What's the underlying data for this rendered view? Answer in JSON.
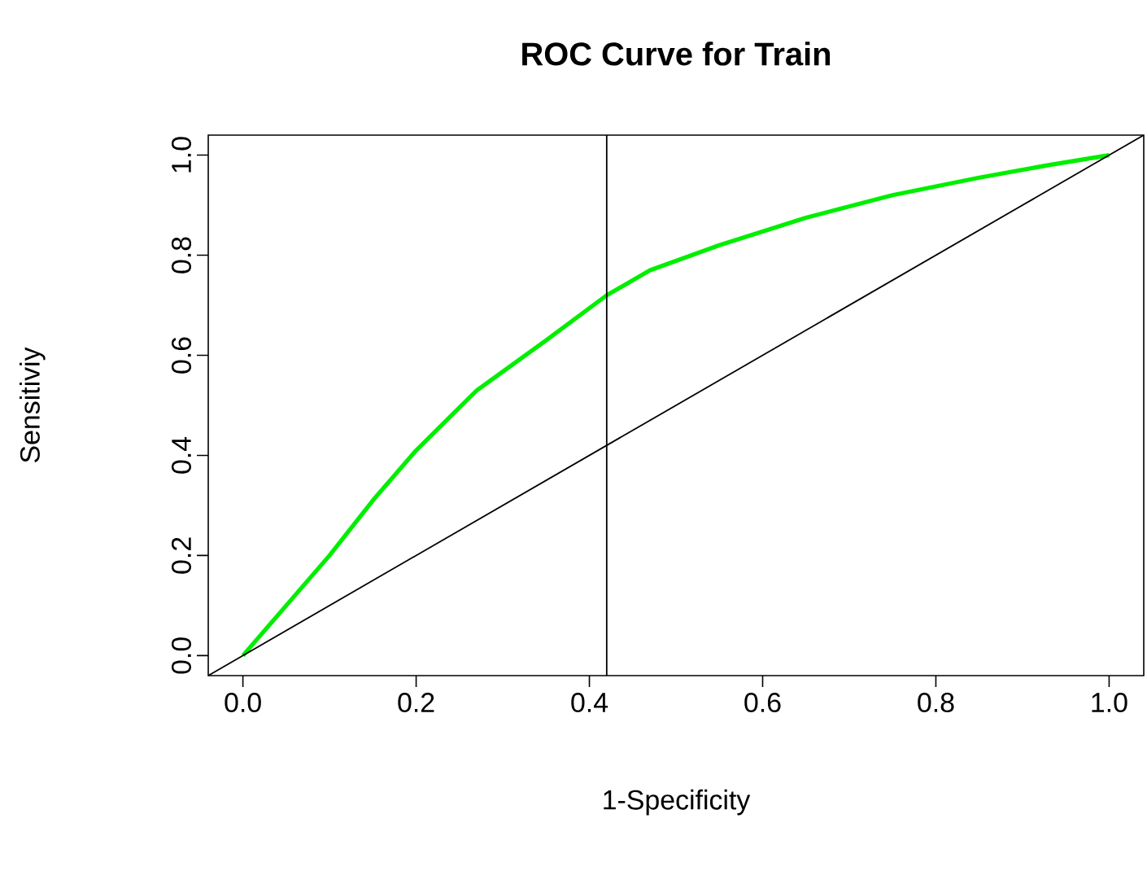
{
  "chart_data": {
    "type": "line",
    "title": "ROC Curve for Train",
    "xlabel": "1-Specificity",
    "ylabel": "Sensitiviy",
    "xlim": [
      -0.04,
      1.04
    ],
    "ylim": [
      -0.04,
      1.04
    ],
    "xticks": [
      {
        "value": 0,
        "label": "0.0"
      },
      {
        "value": 0.2,
        "label": "0.2"
      },
      {
        "value": 0.4,
        "label": "0.4"
      },
      {
        "value": 0.6,
        "label": "0.6"
      },
      {
        "value": 0.8,
        "label": "0.8"
      },
      {
        "value": 1,
        "label": "1.0"
      }
    ],
    "yticks": [
      {
        "value": 0,
        "label": "0.0"
      },
      {
        "value": 0.2,
        "label": "0.2"
      },
      {
        "value": 0.4,
        "label": "0.4"
      },
      {
        "value": 0.6,
        "label": "0.6"
      },
      {
        "value": 0.8,
        "label": "0.8"
      },
      {
        "value": 1,
        "label": "1.0"
      }
    ],
    "grid": false,
    "marker": "none",
    "series": [
      {
        "color": "#00ee00",
        "x": [
          0,
          0.05,
          0.1,
          0.15,
          0.2,
          0.27,
          0.35,
          0.42,
          0.47,
          0.55,
          0.65,
          0.75,
          0.85,
          0.93,
          1
        ],
        "values": [
          0,
          0.1,
          0.2,
          0.31,
          0.41,
          0.53,
          0.63,
          0.72,
          0.77,
          0.82,
          0.875,
          0.92,
          0.955,
          0.98,
          1
        ]
      },
      {
        "color": "#000000",
        "x": [
          -0.04,
          1.04
        ],
        "values": [
          -0.04,
          1.04
        ]
      }
    ],
    "ref_lines": [
      {
        "axis": "x",
        "value": 0.42,
        "color": "#000000"
      }
    ]
  }
}
